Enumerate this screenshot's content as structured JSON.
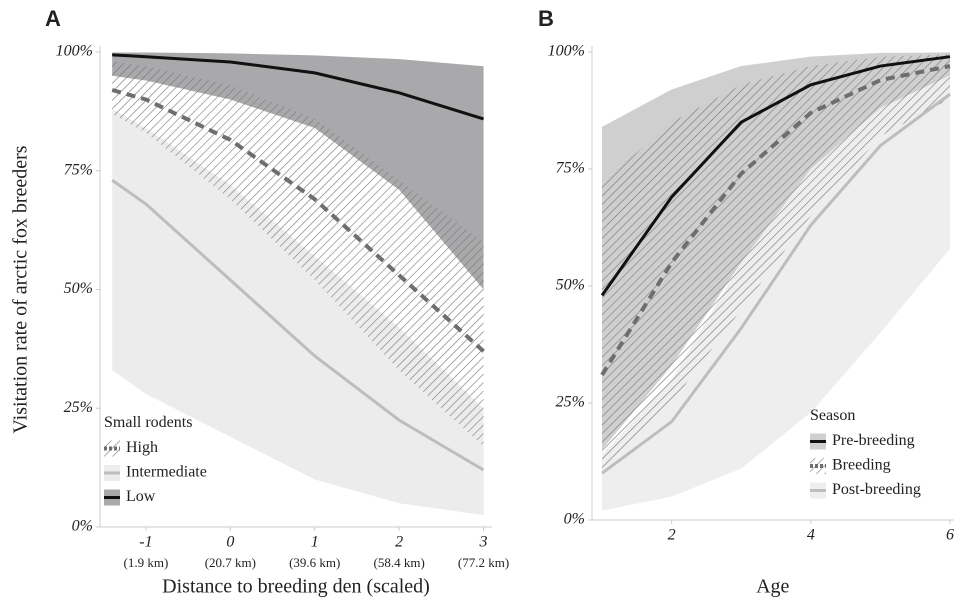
{
  "chart_data": [
    {
      "type": "line",
      "title": "A",
      "y_label": "Visitation rate of arctic fox breeders",
      "x_label": "Distance to breeding den (scaled)",
      "x": [
        -1.4,
        -1,
        0,
        1,
        2,
        3
      ],
      "xlim": [
        -1.55,
        3.1
      ],
      "xticks": [
        -1,
        0,
        1,
        2,
        3
      ],
      "xtick_sublabels": [
        "(1.9 km)",
        "(20.7 km)",
        "(39.6 km)",
        "(58.4 km)",
        "(77.2 km)"
      ],
      "ylim": [
        0,
        100
      ],
      "yticks": [
        {
          "value": 0,
          "label": "0%"
        },
        {
          "value": 25,
          "label": "25%"
        },
        {
          "value": 50,
          "label": "50%"
        },
        {
          "value": 75,
          "label": "75%"
        },
        {
          "value": 100,
          "label": "100%"
        }
      ],
      "legend_title": "Small rodents",
      "legend": "bottom-left",
      "series": [
        {
          "name": "High",
          "color": "#6e6e6e",
          "dash": true,
          "band_color": "#777777",
          "band_style": "hatch",
          "values": [
            92,
            90,
            81.5,
            69,
            53,
            37
          ],
          "lower": [
            87,
            83,
            69,
            52,
            33,
            17
          ],
          "upper": [
            98,
            97,
            93,
            86,
            73,
            60
          ]
        },
        {
          "name": "Intermediate",
          "color": "#bdbdbd",
          "dash": false,
          "band_color": "#ececec",
          "band_style": "solid",
          "values": [
            73,
            68,
            52,
            36,
            22.5,
            12
          ],
          "lower": [
            33,
            28,
            19,
            10,
            5,
            2.5
          ],
          "upper": [
            88,
            84,
            72,
            57,
            42,
            25
          ]
        },
        {
          "name": "Low",
          "color": "#111111",
          "dash": false,
          "band_color": "#a9a9ab",
          "band_style": "solid",
          "values": [
            99.4,
            99,
            97.9,
            95.6,
            91.4,
            85.9
          ],
          "lower": [
            95,
            94,
            90,
            84,
            71,
            50
          ],
          "upper": [
            99.9,
            99.9,
            99.7,
            99.3,
            98.5,
            97
          ]
        }
      ]
    },
    {
      "type": "line",
      "title": "B",
      "x_label": "Age",
      "x": [
        1,
        2,
        3,
        4,
        5,
        6
      ],
      "xlim": [
        0.85,
        6.05
      ],
      "xticks": [
        2,
        4,
        6
      ],
      "ylim": [
        0,
        100
      ],
      "yticks": [
        {
          "value": 0,
          "label": "0%"
        },
        {
          "value": 25,
          "label": "25%"
        },
        {
          "value": 50,
          "label": "50%"
        },
        {
          "value": 75,
          "label": "75%"
        },
        {
          "value": 100,
          "label": "100%"
        }
      ],
      "legend_title": "Season",
      "legend": "bottom-right",
      "series": [
        {
          "name": "Pre-breeding",
          "color": "#111111",
          "dash": false,
          "band_color": "#cfcfcf",
          "band_style": "solid",
          "values": [
            48,
            69,
            85,
            93,
            97,
            99
          ],
          "lower": [
            15,
            33,
            55,
            75,
            88,
            94
          ],
          "upper": [
            84,
            92,
            97,
            99,
            99.8,
            99.9
          ]
        },
        {
          "name": "Breeding",
          "color": "#6e6e6e",
          "dash": true,
          "band_color": "#777777",
          "band_style": "hatch",
          "values": [
            31,
            55,
            74,
            87,
            94,
            97
          ],
          "lower": [
            10,
            25,
            45,
            65,
            82,
            90
          ],
          "upper": [
            72,
            85,
            93,
            97,
            99,
            99.5
          ]
        },
        {
          "name": "Post-breeding",
          "color": "#bdbdbd",
          "dash": false,
          "band_color": "#eeeeee",
          "band_style": "solid",
          "values": [
            10,
            21,
            41,
            63,
            80,
            91
          ],
          "lower": [
            2,
            5,
            11,
            23,
            40,
            58
          ],
          "upper": [
            14,
            30,
            55,
            75,
            88,
            95
          ]
        }
      ]
    }
  ]
}
